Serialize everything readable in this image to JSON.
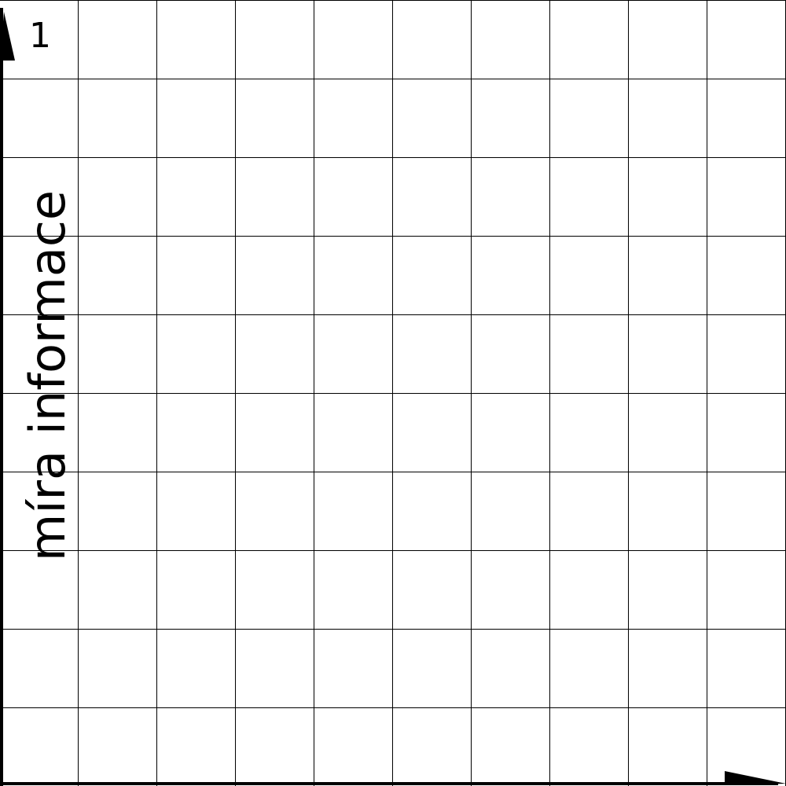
{
  "chart_data": {
    "type": "line",
    "title": "",
    "xlabel": "",
    "ylabel": "míra informace",
    "xlim": [
      0,
      10
    ],
    "ylim": [
      0,
      1
    ],
    "grid": true,
    "grid_divisions": 10,
    "y_tick_labels": [
      "1"
    ],
    "series": [],
    "colors": {
      "grid": "#000000",
      "axis": "#000000",
      "background": "#ffffff"
    }
  }
}
